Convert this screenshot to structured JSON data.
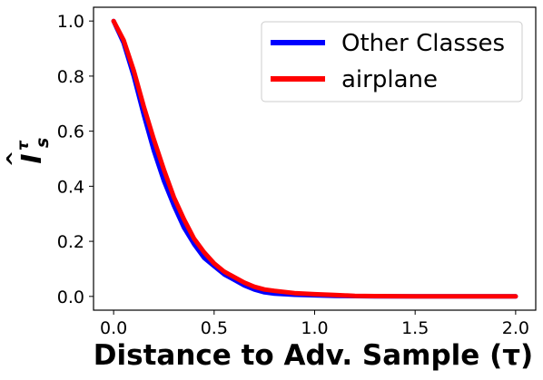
{
  "chart_data": {
    "type": "line",
    "xlabel": "Distance to Adv. Sample (τ)",
    "ylabel": "I_s^τ (hat)",
    "xlim": [
      -0.1,
      2.1
    ],
    "ylim": [
      -0.05,
      1.05
    ],
    "xticks": [
      0.0,
      0.5,
      1.0,
      1.5,
      2.0
    ],
    "xtick_labels": [
      "0.0",
      "0.5",
      "1.0",
      "1.5",
      "2.0"
    ],
    "yticks": [
      0.0,
      0.2,
      0.4,
      0.6,
      0.8,
      1.0
    ],
    "ytick_labels": [
      "0.0",
      "0.2",
      "0.4",
      "0.6",
      "0.8",
      "1.0"
    ],
    "grid": false,
    "legend_position": "top-right",
    "series": [
      {
        "name": "Other Classes",
        "color": "#0000ff",
        "x": [
          0.0,
          0.05,
          0.1,
          0.15,
          0.2,
          0.25,
          0.3,
          0.35,
          0.4,
          0.45,
          0.5,
          0.55,
          0.6,
          0.65,
          0.7,
          0.75,
          0.8,
          0.9,
          1.0,
          1.1,
          1.2,
          1.3,
          1.5,
          1.75,
          2.0
        ],
        "y": [
          1.0,
          0.92,
          0.8,
          0.66,
          0.53,
          0.42,
          0.33,
          0.25,
          0.19,
          0.14,
          0.11,
          0.08,
          0.06,
          0.04,
          0.025,
          0.015,
          0.01,
          0.006,
          0.004,
          0.002,
          0.001,
          0.0,
          0.0,
          0.0,
          0.0
        ]
      },
      {
        "name": "airplane",
        "color": "#ff0000",
        "x": [
          0.0,
          0.05,
          0.1,
          0.15,
          0.2,
          0.25,
          0.3,
          0.35,
          0.4,
          0.45,
          0.5,
          0.55,
          0.6,
          0.65,
          0.7,
          0.75,
          0.8,
          0.9,
          1.0,
          1.1,
          1.2,
          1.3,
          1.5,
          1.75,
          2.0
        ],
        "y": [
          1.0,
          0.93,
          0.82,
          0.69,
          0.57,
          0.46,
          0.36,
          0.28,
          0.21,
          0.16,
          0.12,
          0.09,
          0.07,
          0.05,
          0.035,
          0.025,
          0.02,
          0.012,
          0.008,
          0.005,
          0.002,
          0.001,
          0.0,
          0.0,
          0.0
        ]
      }
    ]
  }
}
